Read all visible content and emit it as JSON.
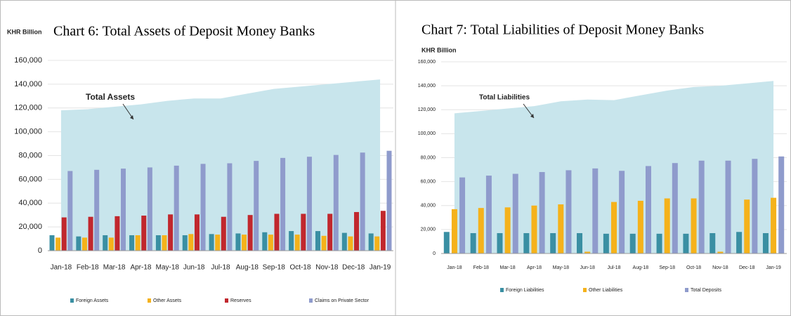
{
  "chart_data": [
    {
      "type": "bar",
      "title": "Chart 6: Total Assets of Deposit Money Banks",
      "y_label": "KHR Billion",
      "annotation": "Total Assets",
      "categories": [
        "Jan-18",
        "Feb-18",
        "Mar-18",
        "Apr-18",
        "May-18",
        "Jun-18",
        "Jul-18",
        "Aug-18",
        "Sep-18",
        "Oct-18",
        "Nov-18",
        "Dec-18",
        "Jan-19"
      ],
      "area": {
        "color": "#c8e5ec",
        "values": [
          118000,
          119000,
          121000,
          123000,
          126000,
          128000,
          128000,
          132000,
          136000,
          138000,
          140000,
          142000,
          144000
        ]
      },
      "series": [
        {
          "name": "Foreign Assets",
          "color": "#3a8fa3",
          "values": [
            13000,
            12000,
            13000,
            13000,
            13000,
            13000,
            14000,
            14500,
            15500,
            16500,
            16500,
            15000,
            14500
          ]
        },
        {
          "name": "Other Assets",
          "color": "#f5b21b",
          "values": [
            11000,
            11000,
            11000,
            13000,
            13000,
            14000,
            13500,
            13500,
            13500,
            13500,
            12500,
            12000,
            12000
          ]
        },
        {
          "name": "Reserves",
          "color": "#c1272d",
          "values": [
            28000,
            28500,
            29000,
            29500,
            30500,
            30500,
            28500,
            30000,
            31000,
            31000,
            31000,
            32500,
            33500
          ]
        },
        {
          "name": "Claims on Private Sector",
          "color": "#8f9bcc",
          "values": [
            67000,
            68000,
            69000,
            70000,
            71500,
            73000,
            73500,
            75500,
            78000,
            79000,
            80500,
            82500,
            84000
          ]
        }
      ],
      "ylim": [
        0,
        160000
      ],
      "yticks": [
        0,
        {
          "value": 20000,
          "label": "20,000"
        },
        {
          "value": 40000,
          "label": "40,000"
        },
        {
          "value": 60000,
          "label": "60,000"
        },
        {
          "value": 80000,
          "label": "80,000"
        },
        {
          "value": 100000,
          "label": "100,000"
        },
        {
          "value": 120000,
          "label": "120,000"
        },
        {
          "value": 140000,
          "label": "140,000"
        },
        {
          "value": 160000,
          "label": "160,000"
        }
      ],
      "grid": true
    },
    {
      "type": "bar",
      "title": "Chart 7: Total Liabilities of Deposit Money Banks",
      "y_label": "KHR Billion",
      "annotation": "Total Liabilities",
      "categories": [
        "Jan-18",
        "Feb-18",
        "Mar-18",
        "Apr-18",
        "May-18",
        "Jun-18",
        "Jul-18",
        "Aug-18",
        "Sep-18",
        "Oct-18",
        "Nov-18",
        "Dec-18",
        "Jan-19"
      ],
      "area": {
        "color": "#c8e5ec",
        "values": [
          117000,
          119000,
          121000,
          123000,
          127000,
          128500,
          128000,
          132000,
          136000,
          139000,
          140000,
          142000,
          144000
        ]
      },
      "series": [
        {
          "name": "Foreign Liabilities",
          "color": "#3a8fa3",
          "values": [
            18000,
            17000,
            17000,
            17000,
            17000,
            17000,
            16500,
            16500,
            16500,
            16500,
            17000,
            18000,
            17000
          ]
        },
        {
          "name": "Other Liabilities",
          "color": "#f5b21b",
          "values": [
            37000,
            38000,
            38500,
            40000,
            41000,
            1500,
            43000,
            44000,
            46000,
            46000,
            1500,
            45000,
            46500
          ]
        },
        {
          "name": "Total Deposits",
          "color": "#8f9bcc",
          "values": [
            63500,
            65000,
            66500,
            68000,
            69500,
            71000,
            69000,
            73000,
            75500,
            77500,
            77500,
            79000,
            81000
          ]
        }
      ],
      "ylim": [
        0,
        160000
      ],
      "yticks": [
        0,
        {
          "value": 20000,
          "label": "20,000"
        },
        {
          "value": 40000,
          "label": "40,000"
        },
        {
          "value": 60000,
          "label": "60,000"
        },
        {
          "value": 80000,
          "label": "80,000"
        },
        {
          "value": 100000,
          "label": "100,000"
        },
        {
          "value": 120000,
          "label": "120,000"
        },
        {
          "value": 140000,
          "label": "140,000"
        },
        {
          "value": 160000,
          "label": "160,000"
        }
      ],
      "grid": true
    }
  ]
}
